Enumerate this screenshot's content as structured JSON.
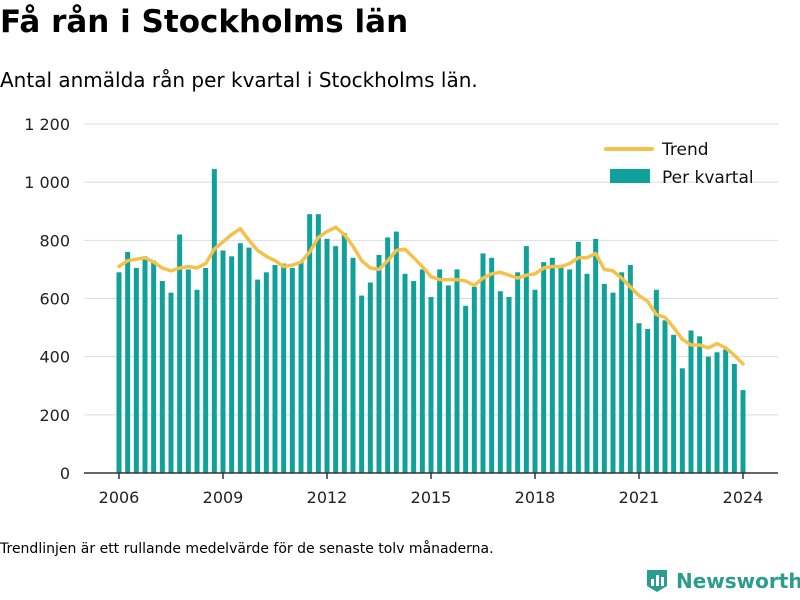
{
  "header": {
    "title": "Få rån i Stockholms län",
    "subtitle": "Antal anmälda rån per kvartal i Stockholms län."
  },
  "footnote": "Trendlinjen är ett rullande medelvärde för de senaste tolv månaderna.",
  "brand": {
    "name": "Newsworthy",
    "icon": "newsworthy-logo-icon",
    "color": "#2a9d8f"
  },
  "chart_data": {
    "type": "bar",
    "title": "Få rån i Stockholms län",
    "subtitle": "Antal anmälda rån per kvartal i Stockholms län.",
    "xlabel": "",
    "ylabel": "",
    "ylim": [
      0,
      1200
    ],
    "yticks": [
      0,
      200,
      400,
      600,
      800,
      1000,
      1200
    ],
    "ytick_labels": [
      "0",
      "200",
      "400",
      "600",
      "800",
      "1 000",
      "1 200"
    ],
    "xticks": [
      2006,
      2009,
      2012,
      2015,
      2018,
      2021,
      2024
    ],
    "xtick_labels": [
      "2006",
      "2009",
      "2012",
      "2015",
      "2018",
      "2021",
      "2024"
    ],
    "grid": true,
    "legend_position": "top-right",
    "colors": {
      "bars": "#10a19a",
      "trend": "#f4c24c",
      "grid": "#dddddd",
      "axis": "#333333"
    },
    "x_start": 2006,
    "series": [
      {
        "name": "Per kvartal",
        "type": "bar",
        "values": [
          690,
          760,
          705,
          745,
          730,
          660,
          620,
          820,
          700,
          630,
          705,
          1045,
          765,
          745,
          790,
          775,
          665,
          690,
          715,
          720,
          705,
          725,
          890,
          890,
          805,
          780,
          825,
          740,
          610,
          655,
          750,
          810,
          830,
          685,
          660,
          700,
          605,
          700,
          645,
          700,
          575,
          640,
          755,
          740,
          625,
          605,
          690,
          780,
          630,
          725,
          740,
          710,
          700,
          795,
          685,
          805,
          650,
          620,
          690,
          715,
          515,
          495,
          630,
          525,
          475,
          360,
          490,
          470,
          400,
          415,
          425,
          375,
          285
        ]
      },
      {
        "name": "Trend",
        "type": "line",
        "values": [
          710,
          730,
          735,
          740,
          725,
          705,
          695,
          705,
          710,
          705,
          720,
          770,
          795,
          820,
          840,
          800,
          765,
          745,
          730,
          710,
          715,
          725,
          760,
          810,
          830,
          845,
          820,
          780,
          730,
          705,
          700,
          730,
          765,
          770,
          740,
          710,
          675,
          665,
          665,
          665,
          660,
          645,
          670,
          685,
          690,
          680,
          670,
          680,
          685,
          705,
          710,
          710,
          720,
          740,
          740,
          755,
          700,
          695,
          670,
          640,
          610,
          590,
          545,
          535,
          500,
          460,
          440,
          440,
          430,
          445,
          430,
          405,
          375
        ]
      }
    ]
  }
}
